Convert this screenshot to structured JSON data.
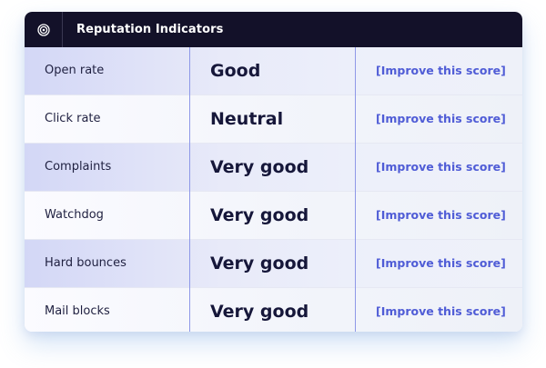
{
  "panel": {
    "title": "Reputation Indicators",
    "icon": "target-icon"
  },
  "rows": [
    {
      "name": "Open rate",
      "value": "Good",
      "action": "[Improve this score]"
    },
    {
      "name": "Click rate",
      "value": "Neutral",
      "action": "[Improve this score]"
    },
    {
      "name": "Complaints",
      "value": "Very good",
      "action": "[Improve this score]"
    },
    {
      "name": "Watchdog",
      "value": "Very good",
      "action": "[Improve this score]"
    },
    {
      "name": "Hard bounces",
      "value": "Very good",
      "action": "[Improve this score]"
    },
    {
      "name": "Mail blocks",
      "value": "Very good",
      "action": "[Improve this score]"
    }
  ],
  "colors": {
    "header_bg": "#131129",
    "link": "#4f5cd6",
    "divider": "#8e98e8",
    "shaded_row": "#d3d7f6"
  }
}
